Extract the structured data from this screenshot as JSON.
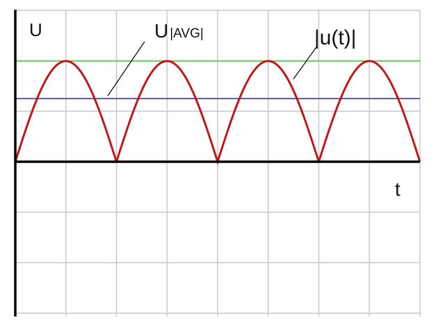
{
  "labels": {
    "axis_y": "U",
    "avg": {
      "main": "U",
      "subscript": "|AVG|"
    },
    "abs": "|u(t)|",
    "axis_x": "t"
  }
}
